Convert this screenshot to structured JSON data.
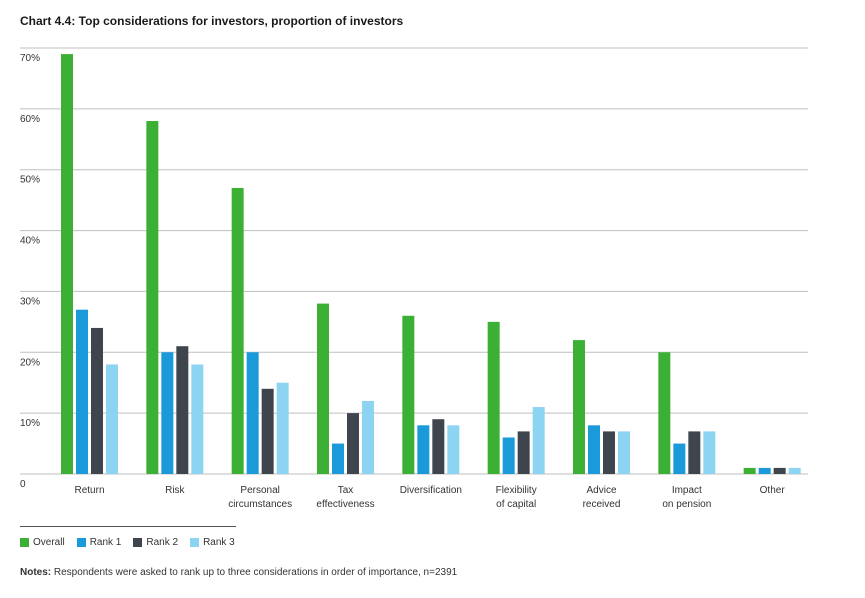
{
  "title": "Chart 4.4: Top considerations for investors, proportion of investors",
  "notes_label": "Notes:",
  "notes_text": " Respondents were asked to rank up to three considerations in order of importance, n=2391",
  "colors": {
    "overall": "#3cb034",
    "rank1": "#1a9ad9",
    "rank2": "#3f454c",
    "rank3": "#8dd3f2",
    "grid": "#bfbfbf"
  },
  "chart_data": {
    "type": "bar",
    "title": "Chart 4.4: Top considerations for investors, proportion of investors",
    "categories": [
      [
        "Return"
      ],
      [
        "Risk"
      ],
      [
        "Personal",
        "circumstances"
      ],
      [
        "Tax",
        "effectiveness"
      ],
      [
        "Diversification"
      ],
      [
        "Flexibility",
        "of capital"
      ],
      [
        "Advice",
        "received"
      ],
      [
        "Impact",
        "on pension"
      ],
      [
        "Other"
      ]
    ],
    "series": [
      {
        "name": "Overall",
        "color": "#3cb034",
        "values": [
          69,
          58,
          47,
          28,
          26,
          25,
          22,
          20,
          1
        ]
      },
      {
        "name": "Rank 1",
        "color": "#1a9ad9",
        "values": [
          27,
          20,
          20,
          5,
          8,
          6,
          8,
          5,
          1
        ]
      },
      {
        "name": "Rank 2",
        "color": "#3f454c",
        "values": [
          24,
          21,
          14,
          10,
          9,
          7,
          7,
          7,
          1
        ]
      },
      {
        "name": "Rank 3",
        "color": "#8dd3f2",
        "values": [
          18,
          18,
          15,
          12,
          8,
          11,
          7,
          7,
          1
        ]
      }
    ],
    "ylim": [
      0,
      70
    ],
    "yticks": [
      {
        "value": 0,
        "label": "0"
      },
      {
        "value": 10,
        "label": "10%"
      },
      {
        "value": 20,
        "label": "20%"
      },
      {
        "value": 30,
        "label": "30%"
      },
      {
        "value": 40,
        "label": "40%"
      },
      {
        "value": 50,
        "label": "50%"
      },
      {
        "value": 60,
        "label": "60%"
      },
      {
        "value": 70,
        "label": "70%"
      }
    ],
    "grid": true,
    "legend": "bottom-left"
  }
}
